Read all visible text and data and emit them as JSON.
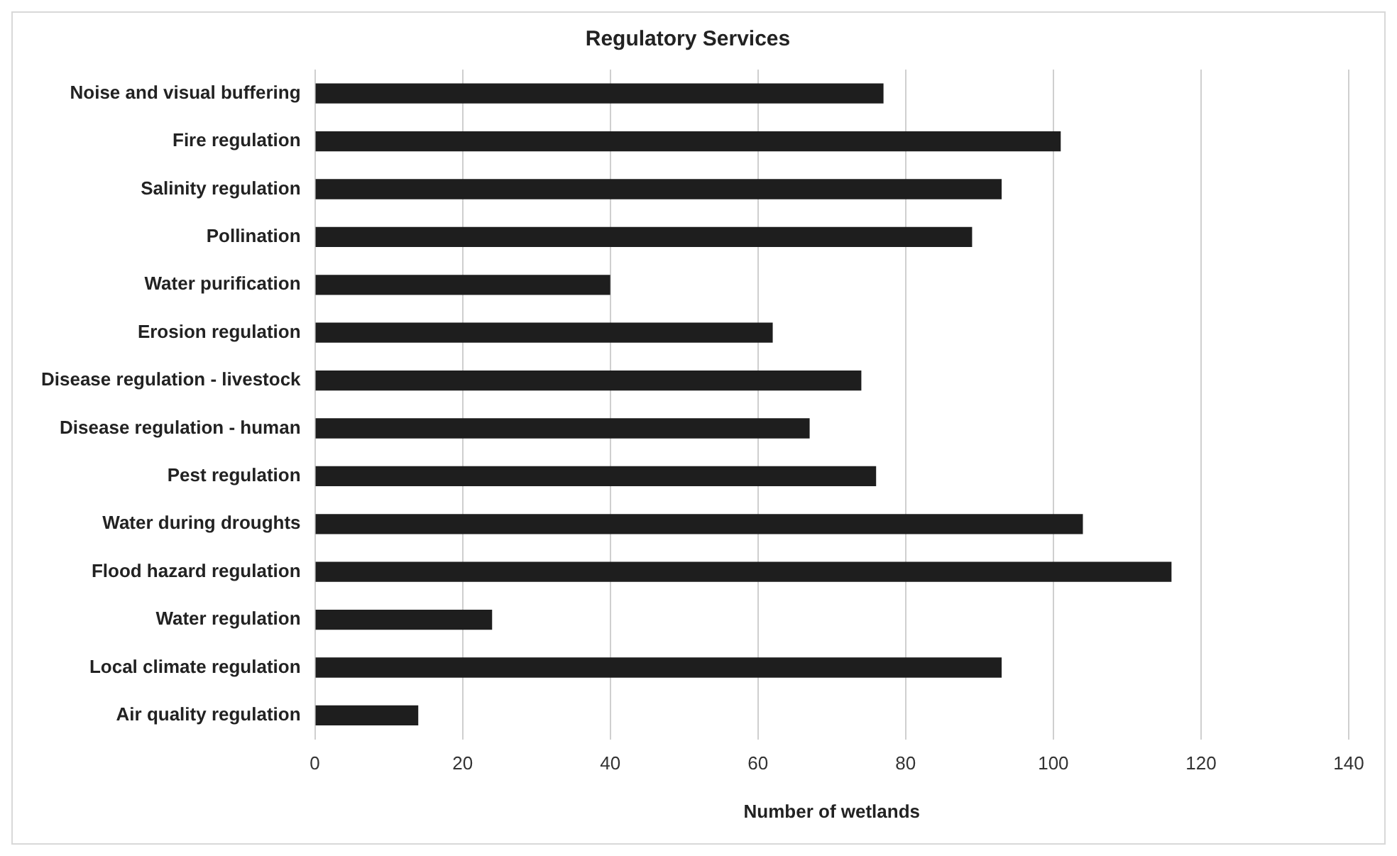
{
  "chart_data": {
    "type": "bar",
    "orientation": "horizontal",
    "title": "Regulatory Services",
    "xlabel": "Number of wetlands",
    "categories": [
      "Noise and visual buffering",
      "Fire regulation",
      "Salinity regulation",
      "Pollination",
      "Water purification",
      "Erosion regulation",
      "Disease regulation - livestock",
      "Disease regulation - human",
      "Pest regulation",
      "Water during droughts",
      "Flood hazard regulation",
      "Water regulation",
      "Local climate regulation",
      "Air quality regulation"
    ],
    "values": [
      77,
      101,
      93,
      89,
      40,
      62,
      74,
      67,
      76,
      104,
      116,
      24,
      93,
      14
    ],
    "color": "#1e1e1e",
    "xlim": [
      0,
      140
    ],
    "xticks": [
      0,
      20,
      40,
      60,
      80,
      100,
      120,
      140
    ],
    "grid": "x"
  }
}
